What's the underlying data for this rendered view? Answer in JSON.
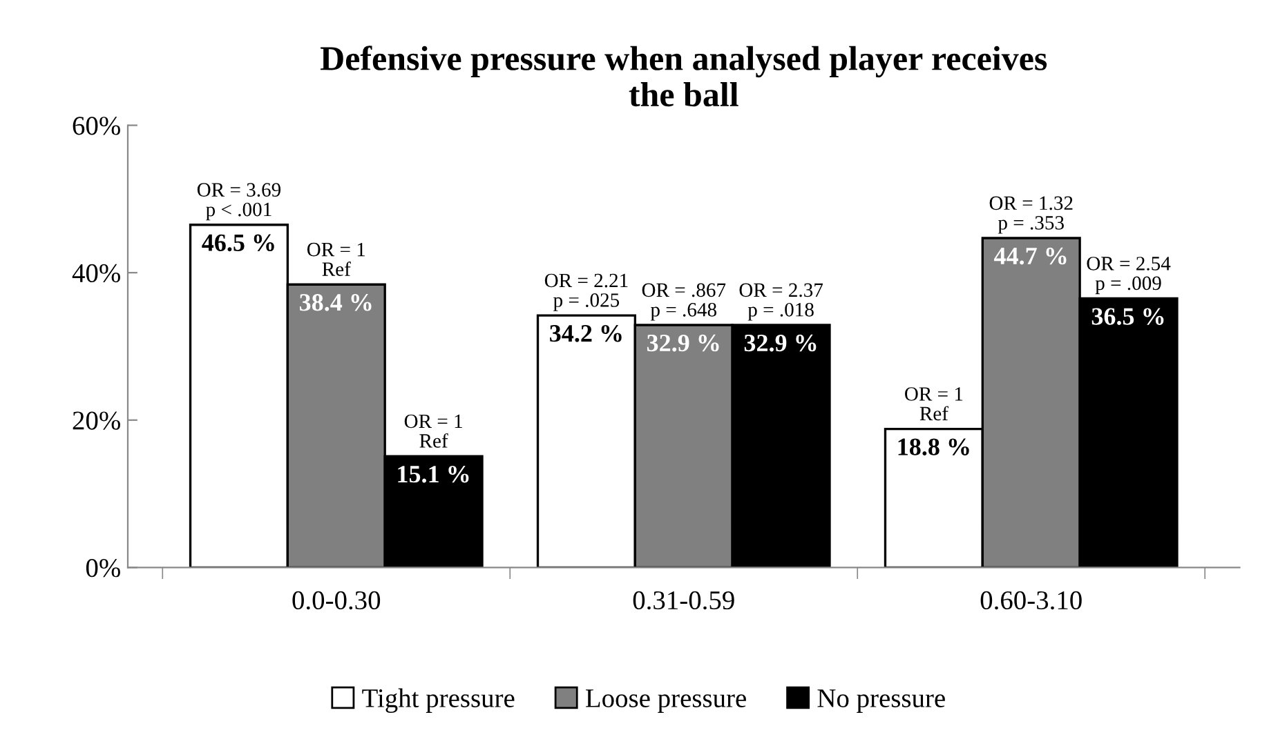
{
  "chart_data": {
    "type": "bar",
    "title": "Defensive pressure when analysed player receives\nthe ball",
    "categories": [
      "0.0-0.30",
      "0.31-0.59",
      "0.60-3.10"
    ],
    "series": [
      {
        "name": "Tight pressure",
        "color": "#ffffff",
        "values": [
          46.5,
          34.2,
          18.8
        ],
        "value_labels": [
          "46.5 %",
          "34.2 %",
          "18.8 %"
        ]
      },
      {
        "name": "Loose pressure",
        "color": "#808080",
        "values": [
          38.4,
          32.9,
          44.7
        ],
        "value_labels": [
          "38.4 %",
          "32.9 %",
          "44.7 %"
        ]
      },
      {
        "name": "No pressure",
        "color": "#000000",
        "values": [
          15.1,
          32.9,
          36.5
        ],
        "value_labels": [
          "15.1 %",
          "32.9 %",
          "36.5 %"
        ]
      }
    ],
    "annotations": [
      "OR = 3.69\np < .001",
      "OR = 1\nRef",
      "OR = 1\nRef",
      "OR = 2.21\np = .025",
      "OR = .867\np = .648",
      "OR = 2.37\np = .018",
      "OR = 1\nRef",
      "OR = 1.32\np = .353",
      "OR = 2.54\np = .009"
    ],
    "ylim": [
      0,
      60
    ],
    "yticks": [
      {
        "value": 0,
        "label": "0%"
      },
      {
        "value": 20,
        "label": "20%"
      },
      {
        "value": 40,
        "label": "40%"
      },
      {
        "value": 60,
        "label": "60%"
      }
    ],
    "grid": false,
    "legend": "bottom"
  }
}
